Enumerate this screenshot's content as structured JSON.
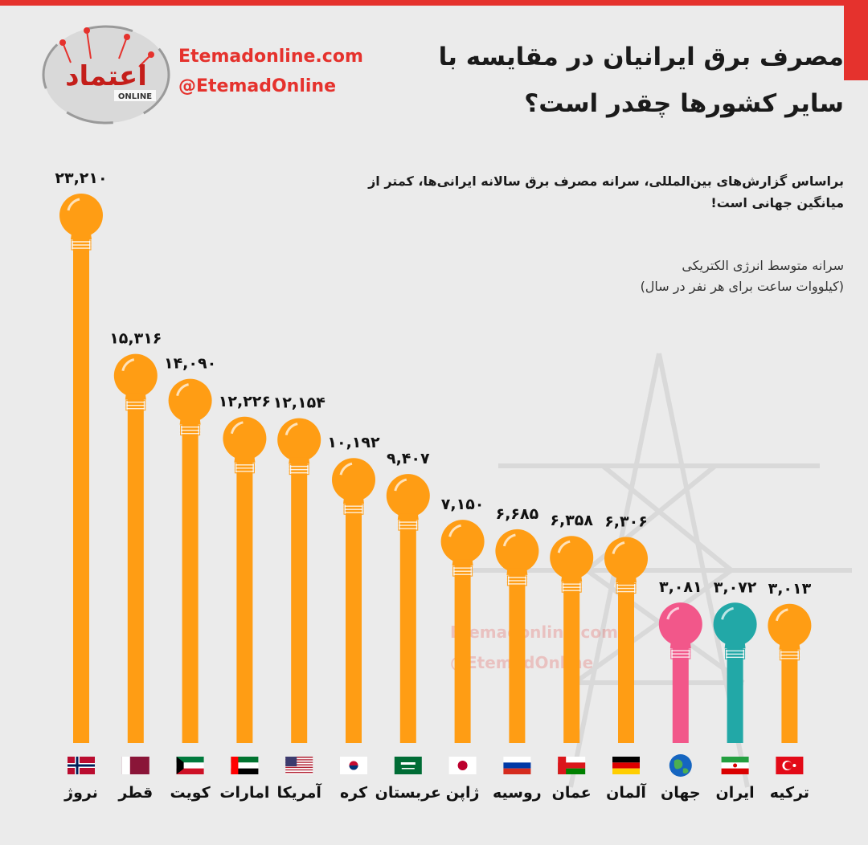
{
  "header": {
    "site_url": "Etemadonline.com",
    "site_handle": "@EtemadOnline",
    "logo_text": "اعتماد",
    "logo_sub": "ONLINE",
    "title": "مصرف برق ایرانیان در مقایسه با سایر کشورها چقدر است؟",
    "subtitle": "براساس گزارش‌های بین‌المللی، سرانه مصرف برق سالانه ایرانی‌ها، کمتر از میانگین جهانی است!",
    "unit_line1": "سرانه متوسط انرژی الکتریکی",
    "unit_line2": "(کیلووات ساعت برای هر نفر در سال)"
  },
  "watermark": {
    "url": "Etemadonline.com",
    "handle": "@EtemadOnline"
  },
  "colors": {
    "accent": "#e5322d",
    "bulb_orange": "#ff9d14",
    "bulb_pink": "#f2578a",
    "bulb_teal": "#22a8a7",
    "background": "#ebebeb"
  },
  "chart_data": {
    "type": "bar",
    "categories": [
      "نروژ",
      "قطر",
      "کویت",
      "امارات",
      "آمریکا",
      "کره",
      "عربستان",
      "ژاپن",
      "روسیه",
      "عمان",
      "آلمان",
      "جهان",
      "ایران",
      "ترکیه"
    ],
    "values": [
      23210,
      15316,
      14090,
      12226,
      12154,
      10192,
      9407,
      7150,
      6685,
      6358,
      6306,
      3081,
      3072,
      3013
    ],
    "value_labels": [
      "۲۳,۲۱۰",
      "۱۵,۳۱۶",
      "۱۴,۰۹۰",
      "۱۲,۲۲۶",
      "۱۲,۱۵۴",
      "۱۰,۱۹۲",
      "۹,۴۰۷",
      "۷,۱۵۰",
      "۶,۶۸۵",
      "۶,۳۵۸",
      "۶,۳۰۶",
      "۳,۰۸۱",
      "۳,۰۷۲",
      "۳,۰۱۳"
    ],
    "flags": [
      "flag-norway",
      "flag-qatar",
      "flag-kuwait",
      "flag-uae",
      "flag-usa",
      "flag-korea",
      "flag-saudi",
      "flag-japan",
      "flag-russia",
      "flag-oman",
      "flag-germany",
      "globe",
      "flag-iran",
      "flag-turkey"
    ],
    "bar_colors": [
      "#ff9d14",
      "#ff9d14",
      "#ff9d14",
      "#ff9d14",
      "#ff9d14",
      "#ff9d14",
      "#ff9d14",
      "#ff9d14",
      "#ff9d14",
      "#ff9d14",
      "#ff9d14",
      "#f2578a",
      "#22a8a7",
      "#ff9d14"
    ],
    "grid": false,
    "legend": "none"
  }
}
